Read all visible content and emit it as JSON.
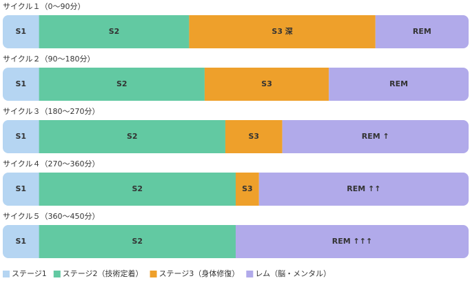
{
  "chart_data": {
    "type": "bar",
    "orientation": "horizontal",
    "stacked": true,
    "categories": [
      "サイクル１（0〜90分）",
      "サイクル２（90〜180分）",
      "サイクル３（180〜270分）",
      "サイクル４（270〜360分）",
      "サイクル５（360〜450分）"
    ],
    "xlim": [
      0,
      90
    ],
    "series": [
      {
        "name": "ステージ1",
        "color": "#b5d5f2",
        "text_color": "#1d3f6e",
        "values": [
          7,
          7,
          7,
          7,
          7
        ],
        "labels": [
          "S1",
          "S1",
          "S1",
          "S1",
          "S1"
        ]
      },
      {
        "name": "ステージ2（技術定着）",
        "color": "#62c9a2",
        "text_color": "#0e4a34",
        "values": [
          29,
          32,
          36,
          38,
          38
        ],
        "labels": [
          "S2",
          "S2",
          "S2",
          "S2",
          "S2"
        ]
      },
      {
        "name": "ステージ3（身体修復）",
        "color": "#eea02b",
        "text_color": "#5a3300",
        "values": [
          36,
          24,
          11,
          4.5,
          0
        ],
        "labels": [
          "S3 深",
          "S3",
          "S3",
          "S3",
          null
        ]
      },
      {
        "name": "レム（脳・メンタル）",
        "color": "#b1aaea",
        "text_color": "#2b2a6b",
        "values": [
          18,
          27,
          36,
          40.5,
          45
        ],
        "labels": [
          "REM",
          "REM",
          "REM ↑",
          "REM ↑↑",
          "REM ↑↑↑"
        ]
      }
    ],
    "legend": "bottom-left"
  }
}
